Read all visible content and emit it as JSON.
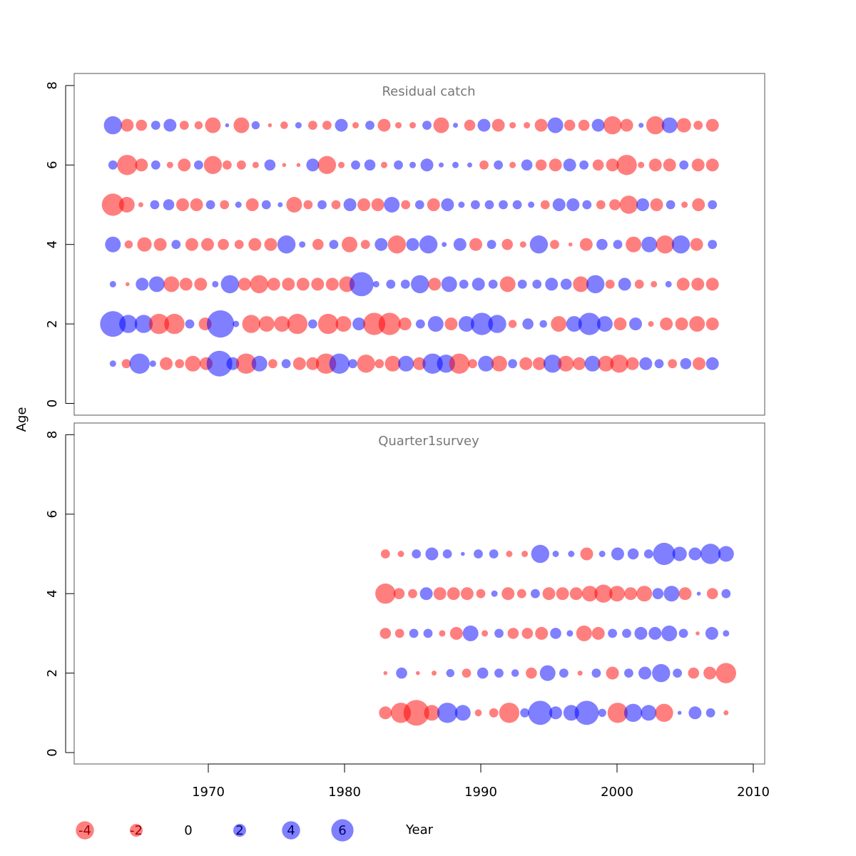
{
  "chart_data": {
    "type": "scatter",
    "subtype": "bubble",
    "xlabel": "Year",
    "ylabel": "Age",
    "x_ticks": [
      1970,
      1980,
      1990,
      2000,
      2010
    ],
    "y_ticks": [
      0,
      2,
      4,
      6,
      8
    ],
    "xlim": [
      1961,
      2011
    ],
    "ylim": [
      -0.3,
      8.3
    ],
    "colors": {
      "negative": "#ff0000",
      "positive": "#0000ff",
      "opacity": 0.5
    },
    "legend": {
      "position": "bottom-left",
      "values": [
        -4,
        -2,
        0,
        2,
        4,
        6
      ],
      "labels": [
        "-4",
        "-2",
        "0",
        "2",
        "4",
        "6"
      ]
    },
    "panels": [
      {
        "title": "Residual catch",
        "years": [
          1963,
          2007
        ],
        "ages": [
          1,
          2,
          3,
          4,
          5,
          6,
          7
        ],
        "residuals_by_age": {
          "7": [
            4,
            -2,
            -1.5,
            1,
            2,
            -1,
            -0.8,
            -3,
            0.2,
            -3,
            0.8,
            -0.2,
            -0.7,
            0.5,
            -1,
            -1,
            2,
            -0.5,
            1,
            -2,
            -0.5,
            -0.5,
            1,
            -3,
            0.3,
            -1.5,
            2,
            -2,
            -0.5,
            -0.5,
            -2,
            3,
            -1.5,
            -1.5,
            2,
            -4,
            -2,
            0.3,
            -4,
            3,
            -2.5,
            -1,
            -2
          ],
          "6": [
            1,
            -5,
            -2,
            1,
            -0.5,
            -2,
            1,
            -4,
            -1,
            -1,
            -0.5,
            1.5,
            -0.2,
            -0.2,
            2,
            -4,
            -0.5,
            1,
            1.5,
            -0.5,
            1,
            0.5,
            2,
            0.3,
            0.5,
            0.3,
            -1,
            1,
            -0.5,
            1.5,
            -1.5,
            -2,
            2,
            1,
            -1.5,
            -2,
            -5,
            -0.5,
            -2,
            -2,
            1,
            -2,
            -2
          ],
          "5": [
            -6,
            -3,
            -0.3,
            1,
            1.5,
            -2,
            -2,
            1,
            -1,
            0.5,
            -2,
            1,
            0.3,
            -3,
            -1,
            1,
            -1,
            2,
            -2,
            -2,
            3,
            -1,
            1,
            -2,
            2,
            0.5,
            1,
            1,
            1,
            1,
            0.5,
            -1,
            2,
            2,
            1,
            -1,
            -1.5,
            -4,
            2,
            -2,
            1,
            -0.5,
            -2,
            1
          ],
          "4": [
            3,
            -0.8,
            -2.5,
            -2,
            1,
            -2,
            -2,
            -1.5,
            -1,
            -2,
            -2,
            4,
            0.5,
            -1.5,
            1,
            -3,
            -1,
            2,
            -4,
            2,
            4,
            0.3,
            2,
            -2,
            1,
            -1.5,
            -0.5,
            4,
            -1,
            -0.2,
            -2,
            1.5,
            1,
            -3,
            3,
            -4,
            4,
            -2,
            1
          ],
          "3": [
            0.5,
            -0.2,
            2,
            3,
            -3,
            -2,
            -2,
            0.5,
            4,
            -2,
            -4,
            -2,
            -2,
            -2,
            -2,
            -2,
            -3,
            7,
            0.5,
            1,
            1,
            4,
            -2,
            3,
            1,
            2,
            1,
            -3,
            1,
            1,
            2,
            1.5,
            -3,
            4,
            -1,
            2,
            -1,
            -0.5,
            0.5,
            -2,
            -2,
            -2
          ],
          "2": [
            8,
            4,
            4,
            -5,
            -5,
            1,
            -2,
            9,
            0.5,
            -4,
            -3,
            -3,
            -5,
            1,
            -5,
            -3,
            2,
            -6,
            -6,
            -2,
            1,
            3,
            -2,
            3,
            6,
            4,
            -0.8,
            1.5,
            0.7,
            -3,
            3,
            6,
            3,
            -2,
            2,
            -0.4,
            -2,
            -2,
            -3,
            -2
          ],
          "1": [
            0.5,
            -1,
            5,
            0.5,
            -2,
            -1,
            -3,
            -2,
            8,
            2,
            -5,
            3,
            -1,
            1,
            -2,
            -2,
            -5,
            5,
            1,
            -4,
            -1,
            -3,
            3,
            -2,
            5,
            4,
            -5,
            -1,
            3,
            -3,
            1,
            -2,
            -2,
            4,
            -3,
            -2,
            3,
            -3,
            -4,
            -2,
            2,
            1,
            -1,
            1.5,
            -2,
            2
          ]
        }
      },
      {
        "title": "Quarter1survey",
        "years": [
          1983,
          2008
        ],
        "ages": [
          1,
          2,
          3,
          4,
          5
        ],
        "residuals_by_age": {
          "5": [
            -1,
            -0.5,
            1,
            2,
            1,
            0.2,
            1,
            1,
            -0.5,
            -0.5,
            4,
            0.5,
            0.5,
            -2,
            0.5,
            2,
            1.5,
            1,
            6,
            2.5,
            2,
            5,
            3
          ],
          "4": [
            -5,
            -1.5,
            -1,
            2,
            -2,
            -2,
            -2,
            -1,
            0.5,
            -2,
            -1,
            1,
            -2,
            -2,
            -2,
            -3,
            -4,
            -3,
            -2,
            -3,
            1.5,
            3,
            -2,
            0.2,
            -1.5,
            1
          ],
          "3": [
            -1.5,
            -1,
            1,
            1,
            -0.5,
            -2,
            3,
            -0.5,
            1,
            -1.5,
            -1.5,
            -2,
            1.5,
            0.5,
            -3,
            -2,
            1,
            1,
            2,
            2,
            3,
            1,
            -0.2,
            2,
            0.5
          ],
          "2": [
            -0.2,
            1.5,
            -0.2,
            -0.3,
            0.8,
            -1,
            1.5,
            1,
            0.7,
            -1.5,
            3,
            1,
            -0.3,
            1,
            -2,
            1,
            2,
            4,
            1,
            -1.5,
            -2,
            -5
          ],
          "1": [
            -2,
            -5,
            -8,
            -3,
            5,
            3,
            -0.6,
            -1,
            -5,
            1,
            7,
            2,
            3,
            7,
            0.8,
            -5,
            4,
            3,
            -4,
            0.2,
            2,
            1,
            -0.3
          ]
        }
      }
    ]
  }
}
